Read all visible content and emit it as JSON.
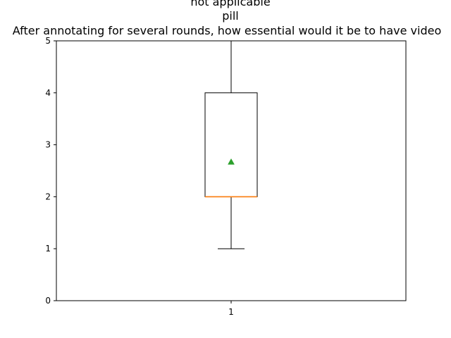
{
  "chart_data": {
    "type": "box",
    "title_lines": [
      "not applicable",
      "pill",
      "After annotating for several rounds, how essential would it be to have video"
    ],
    "categories": [
      "1"
    ],
    "yticks": [
      "0",
      "1",
      "2",
      "3",
      "4",
      "5"
    ],
    "ylim": [
      0,
      5
    ],
    "grid": false,
    "boxes": [
      {
        "category": "1",
        "whisker_low": 1,
        "q1": 2,
        "median": 2,
        "q3": 4,
        "whisker_high": 5,
        "mean": 2.67
      }
    ],
    "colors": {
      "box": "#000000",
      "median": "#ff7f0e",
      "mean": "#2ca02c"
    }
  }
}
